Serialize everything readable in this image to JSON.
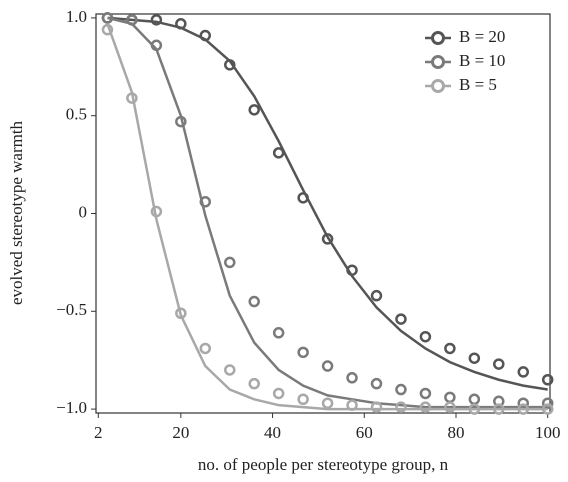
{
  "chart_data": {
    "type": "scatter-fit",
    "x_label": "no. of people per stereotype group, n",
    "y_label": "evolved stereotype warmth",
    "x": [
      4,
      9.33,
      14.67,
      20,
      25.33,
      30.67,
      36,
      41.33,
      46.67,
      52,
      57.33,
      62.67,
      68,
      73.33,
      78.67,
      84,
      89.33,
      94.67,
      100
    ],
    "series": [
      {
        "name": "B = 20",
        "color": "#555555",
        "values": [
          1.0,
          0.99,
          0.99,
          0.97,
          0.91,
          0.76,
          0.53,
          0.31,
          0.08,
          -0.13,
          -0.29,
          -0.42,
          -0.54,
          -0.63,
          -0.69,
          -0.74,
          -0.77,
          -0.81,
          -0.85
        ],
        "fit": [
          1.0,
          0.99,
          0.98,
          0.95,
          0.89,
          0.78,
          0.6,
          0.37,
          0.12,
          -0.12,
          -0.32,
          -0.48,
          -0.6,
          -0.69,
          -0.76,
          -0.81,
          -0.85,
          -0.88,
          -0.9
        ]
      },
      {
        "name": "B = 10",
        "color": "#7a7a7a",
        "values": [
          1.0,
          0.99,
          0.86,
          0.47,
          0.06,
          -0.25,
          -0.45,
          -0.61,
          -0.71,
          -0.78,
          -0.84,
          -0.87,
          -0.9,
          -0.92,
          -0.94,
          -0.95,
          -0.96,
          -0.97,
          -0.97
        ],
        "fit": [
          1.0,
          0.97,
          0.84,
          0.5,
          -0.01,
          -0.42,
          -0.66,
          -0.8,
          -0.88,
          -0.93,
          -0.95,
          -0.97,
          -0.98,
          -0.99,
          -0.99,
          -0.99,
          -0.99,
          -0.99,
          -0.99
        ]
      },
      {
        "name": "B = 5",
        "color": "#a8a8a8",
        "values": [
          0.94,
          0.59,
          0.01,
          -0.51,
          -0.69,
          -0.8,
          -0.87,
          -0.92,
          -0.95,
          -0.97,
          -0.98,
          -0.99,
          -0.99,
          -0.99,
          -0.99,
          -1.0,
          -1.0,
          -1.0,
          -1.0
        ],
        "fit": [
          0.97,
          0.62,
          -0.03,
          -0.52,
          -0.78,
          -0.9,
          -0.95,
          -0.98,
          -0.99,
          -1.0,
          -1.0,
          -1.0,
          -1.0,
          -1.0,
          -1.0,
          -1.0,
          -1.0,
          -1.0,
          -1.0
        ]
      }
    ],
    "xlim": [
      1.5,
      100.5
    ],
    "ylim": [
      -1.02,
      1.02
    ],
    "xticks": [
      2,
      20,
      40,
      60,
      80,
      100
    ],
    "yticks": [
      {
        "value": 1,
        "label": "1.0"
      },
      0.5,
      0,
      {
        "value": -0.5,
        "label": "−0.5"
      },
      {
        "value": -1,
        "label": "−1.0"
      }
    ],
    "legend": "upper right"
  }
}
